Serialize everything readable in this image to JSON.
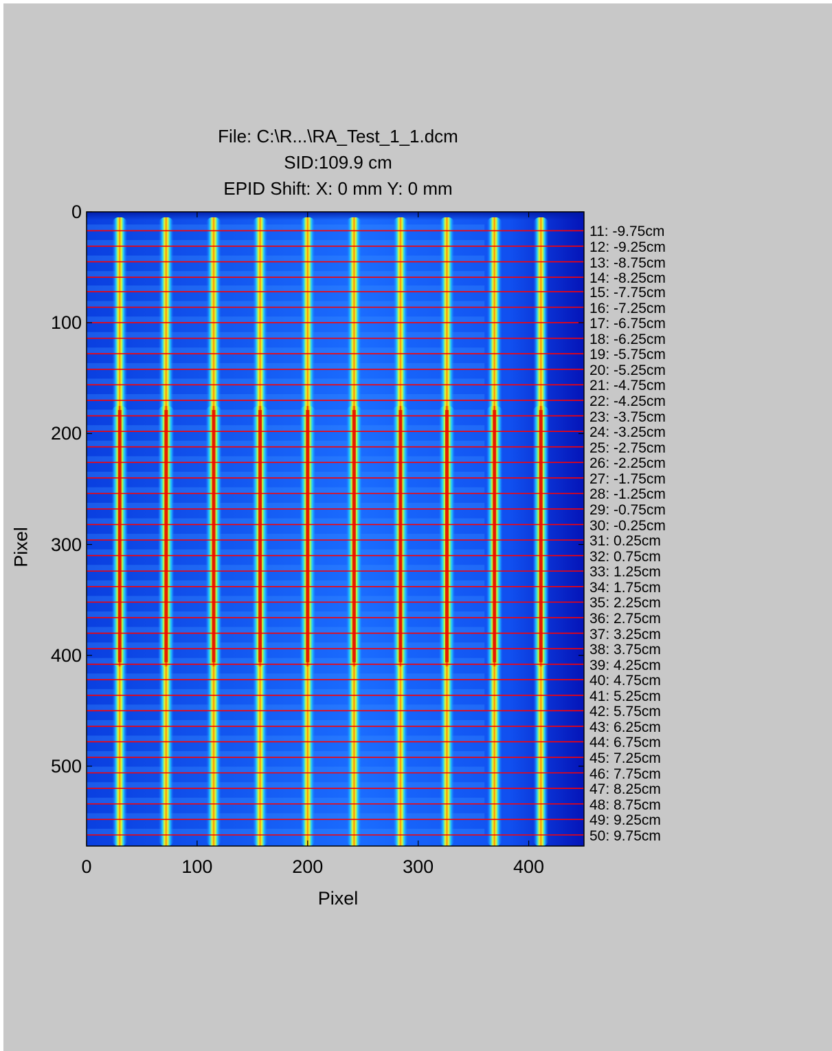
{
  "figure": {
    "title_lines": [
      "File: C:\\R...\\RA_Test_1_1.dcm",
      "SID:109.9 cm",
      "EPID Shift:  X: 0 mm Y: 0 mm"
    ],
    "colormap": "jet",
    "background_color": "#c8c8c8"
  },
  "chart_data": {
    "type": "heatmap",
    "xlabel": "Pixel",
    "ylabel": "Pixel",
    "xlim": [
      0,
      450
    ],
    "ylim": [
      0,
      572
    ],
    "y_reversed": true,
    "xticks": [
      "0",
      "100",
      "200",
      "300",
      "400"
    ],
    "yticks": [
      "0",
      "100",
      "200",
      "300",
      "400",
      "500"
    ],
    "xtick_values": [
      0,
      100,
      200,
      300,
      400
    ],
    "ytick_values": [
      0,
      100,
      200,
      300,
      400,
      500
    ],
    "strip_x_positions": [
      30,
      72,
      115,
      157,
      200,
      242,
      284,
      326,
      369,
      411
    ],
    "bright_band_y": [
      175,
      410
    ],
    "line_color": "#ff0000",
    "profile_lines": [
      {
        "y": 17,
        "label": "11: -9.75cm"
      },
      {
        "y": 31,
        "label": "12: -9.25cm"
      },
      {
        "y": 45,
        "label": "13: -8.75cm"
      },
      {
        "y": 59,
        "label": "14: -8.25cm"
      },
      {
        "y": 72,
        "label": "15: -7.75cm"
      },
      {
        "y": 86,
        "label": "16: -7.25cm"
      },
      {
        "y": 100,
        "label": "17: -6.75cm"
      },
      {
        "y": 114,
        "label": "18: -6.25cm"
      },
      {
        "y": 128,
        "label": "19: -5.75cm"
      },
      {
        "y": 142,
        "label": "20: -5.25cm"
      },
      {
        "y": 156,
        "label": "21: -4.75cm"
      },
      {
        "y": 170,
        "label": "22: -4.25cm"
      },
      {
        "y": 184,
        "label": "23: -3.75cm"
      },
      {
        "y": 198,
        "label": "24: -3.25cm"
      },
      {
        "y": 212,
        "label": "25: -2.75cm"
      },
      {
        "y": 226,
        "label": "26: -2.25cm"
      },
      {
        "y": 240,
        "label": "27: -1.75cm"
      },
      {
        "y": 254,
        "label": "28: -1.25cm"
      },
      {
        "y": 268,
        "label": "29: -0.75cm"
      },
      {
        "y": 282,
        "label": "30: -0.25cm"
      },
      {
        "y": 296,
        "label": "31: 0.25cm"
      },
      {
        "y": 310,
        "label": "32: 0.75cm"
      },
      {
        "y": 324,
        "label": "33: 1.25cm"
      },
      {
        "y": 338,
        "label": "34: 1.75cm"
      },
      {
        "y": 352,
        "label": "35: 2.25cm"
      },
      {
        "y": 366,
        "label": "36: 2.75cm"
      },
      {
        "y": 380,
        "label": "37: 3.25cm"
      },
      {
        "y": 394,
        "label": "38: 3.75cm"
      },
      {
        "y": 408,
        "label": "39: 4.25cm"
      },
      {
        "y": 422,
        "label": "40: 4.75cm"
      },
      {
        "y": 436,
        "label": "41: 5.25cm"
      },
      {
        "y": 450,
        "label": "42: 5.75cm"
      },
      {
        "y": 464,
        "label": "43: 6.25cm"
      },
      {
        "y": 478,
        "label": "44: 6.75cm"
      },
      {
        "y": 492,
        "label": "45: 7.25cm"
      },
      {
        "y": 506,
        "label": "46: 7.75cm"
      },
      {
        "y": 520,
        "label": "47: 8.25cm"
      },
      {
        "y": 534,
        "label": "48: 8.75cm"
      },
      {
        "y": 548,
        "label": "49: 9.25cm"
      },
      {
        "y": 562,
        "label": "50: 9.75cm"
      }
    ]
  }
}
